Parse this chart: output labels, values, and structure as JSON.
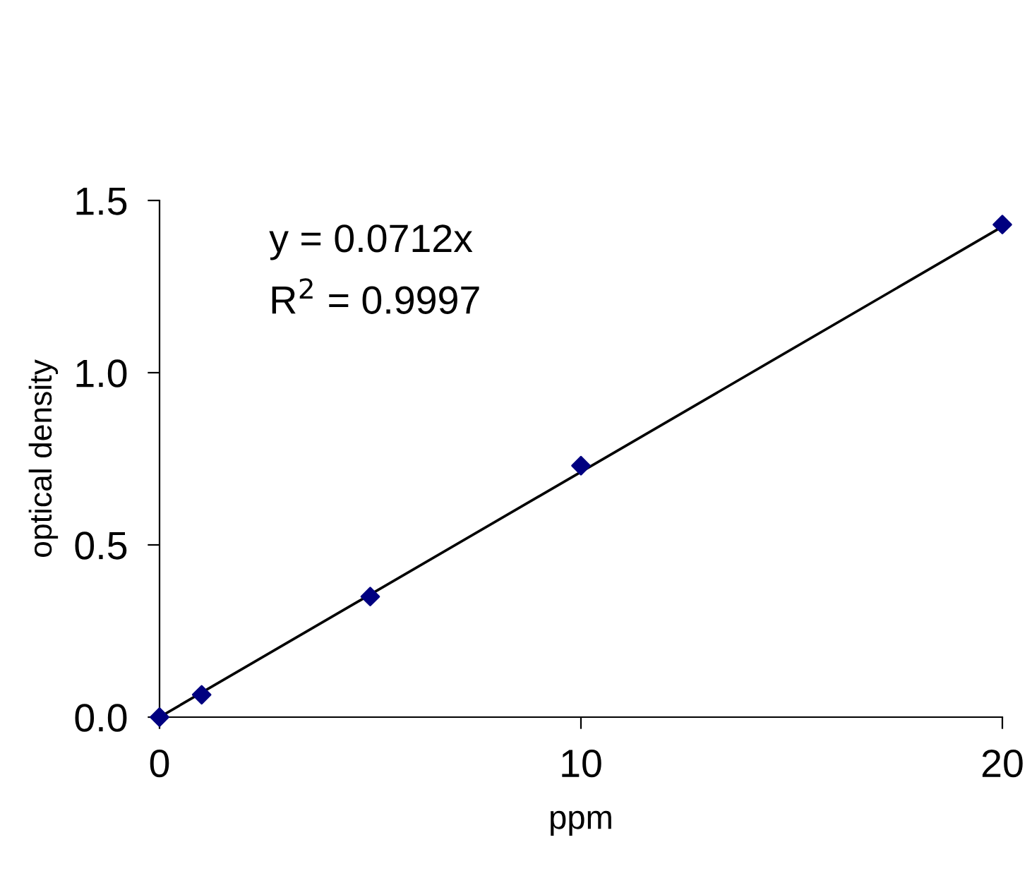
{
  "chart_data": {
    "type": "scatter",
    "xlabel": "ppm",
    "ylabel": "optical density",
    "series": [
      {
        "color": "#000080",
        "marker": "diamond",
        "x": [
          0,
          1,
          5,
          10,
          20
        ],
        "values": [
          0.0,
          0.065,
          0.35,
          0.73,
          1.43
        ]
      },
      {
        "type": "line",
        "color": "#000000",
        "marker": "none",
        "line_style": "solid",
        "x": [
          0,
          20
        ],
        "values": [
          0.0,
          1.424
        ]
      }
    ],
    "xlim": [
      0,
      20
    ],
    "xticks": [
      0,
      10,
      20
    ],
    "ylim": [
      0,
      1.5
    ],
    "yticks": [
      {
        "value": 0,
        "label": "0.0"
      },
      {
        "value": 0.5,
        "label": "0.5"
      },
      {
        "value": 1.0,
        "label": "1.0"
      },
      {
        "value": 1.5,
        "label": "1.5"
      }
    ],
    "grid": false,
    "legend": false,
    "annotations": [
      "y = 0.0712x",
      "R$^{2}$ = 0.9997"
    ]
  }
}
